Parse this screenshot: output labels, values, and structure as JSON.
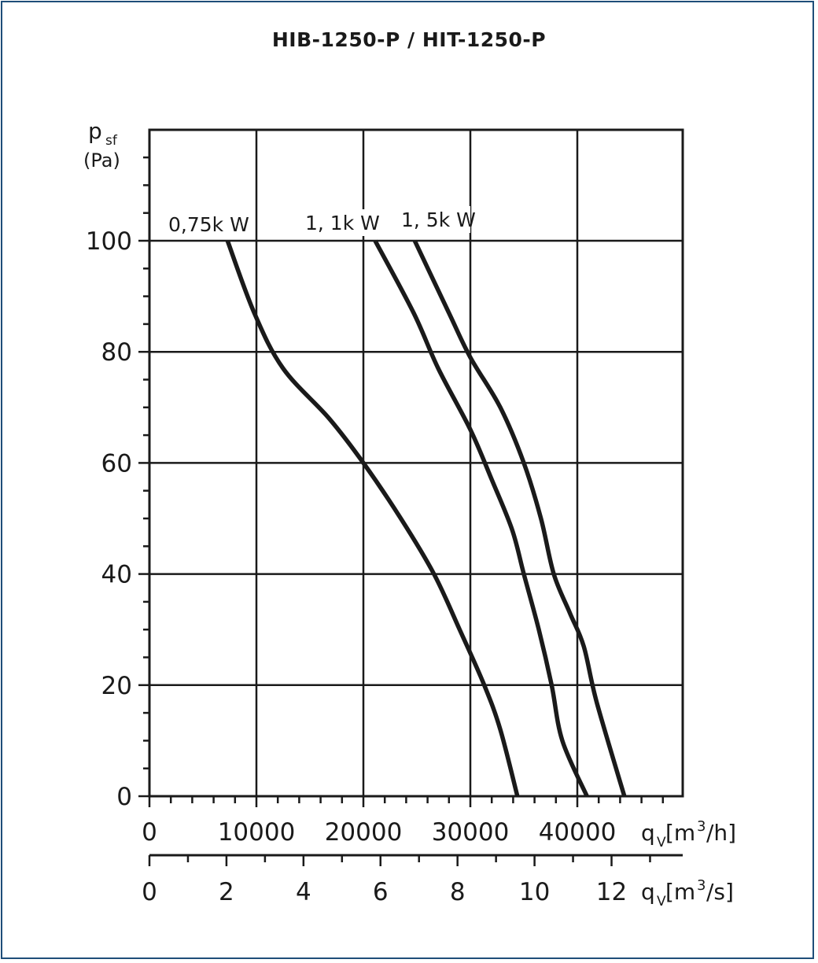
{
  "chart_data": {
    "type": "line",
    "title": "HIB-1250-P / HIT-1250-P",
    "y_axis": {
      "label_main": "p",
      "label_sub": "sf",
      "unit": "(Pa)",
      "range": [
        0,
        120
      ],
      "ticks": [
        0,
        20,
        40,
        60,
        80,
        100
      ],
      "tick_labels": [
        "0",
        "20",
        "40",
        "60",
        "80",
        "100"
      ],
      "minor_step": 5
    },
    "x_axis": {
      "label_main": "q",
      "label_sub": "V",
      "unit_open": "[m",
      "unit_sup": "3",
      "unit_close": "/h]",
      "range": [
        0,
        50000
      ],
      "ticks": [
        0,
        10000,
        20000,
        30000,
        40000
      ],
      "tick_labels": [
        "0",
        "10000",
        "20000",
        "30000",
        "40000"
      ],
      "grid_lines": [
        10000,
        20000,
        30000,
        40000
      ],
      "minor_step": 2000
    },
    "x_axis_secondary": {
      "label_main": "q",
      "label_sub": "V",
      "unit_open": "[m",
      "unit_sup": "3",
      "unit_close": "/s]",
      "ticks": [
        0,
        2,
        4,
        6,
        8,
        10,
        12
      ],
      "tick_labels": [
        "0",
        "2",
        "4",
        "6",
        "8",
        "10",
        "12"
      ]
    },
    "grid": true,
    "series": [
      {
        "name": "0,75k W",
        "points": [
          [
            7300,
            100
          ],
          [
            9800,
            87
          ],
          [
            12500,
            77
          ],
          [
            16800,
            68
          ],
          [
            20000,
            60
          ],
          [
            23500,
            50
          ],
          [
            26600,
            40
          ],
          [
            29000,
            30
          ],
          [
            31300,
            20
          ],
          [
            32800,
            12
          ],
          [
            34400,
            0
          ]
        ]
      },
      {
        "name": "1, 1k W",
        "points": [
          [
            21100,
            100
          ],
          [
            24700,
            87
          ],
          [
            27000,
            77
          ],
          [
            30000,
            66
          ],
          [
            32000,
            57
          ],
          [
            33900,
            48
          ],
          [
            35000,
            40
          ],
          [
            36400,
            30
          ],
          [
            37600,
            20
          ],
          [
            38600,
            10
          ],
          [
            40900,
            0
          ]
        ]
      },
      {
        "name": "1, 5k W",
        "points": [
          [
            24800,
            100
          ],
          [
            28000,
            87
          ],
          [
            30000,
            79
          ],
          [
            32800,
            70
          ],
          [
            35000,
            60
          ],
          [
            36600,
            50
          ],
          [
            37800,
            40
          ],
          [
            39300,
            33
          ],
          [
            40600,
            27
          ],
          [
            41800,
            17
          ],
          [
            44400,
            0
          ]
        ]
      }
    ]
  }
}
